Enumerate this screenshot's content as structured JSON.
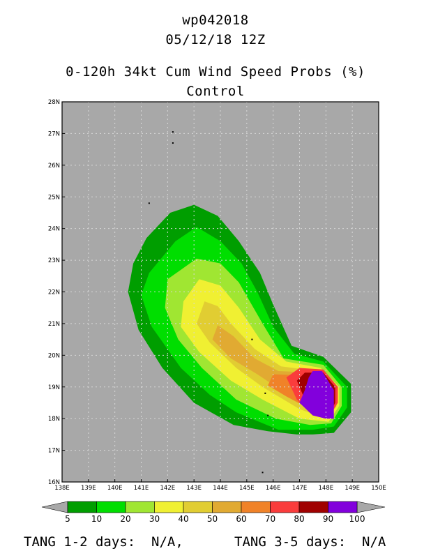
{
  "header": {
    "storm_id": "wp042018",
    "datetime": "05/12/18 12Z",
    "product": "0-120h 34kt Cum Wind Speed Probs (%)",
    "model": "Control"
  },
  "map": {
    "lon_range": [
      138,
      150
    ],
    "lat_range": [
      16,
      28
    ],
    "lon_ticks": [
      "138E",
      "139E",
      "140E",
      "141E",
      "142E",
      "143E",
      "144E",
      "145E",
      "146E",
      "147E",
      "148E",
      "149E",
      "150E"
    ],
    "lat_ticks": [
      "16N",
      "17N",
      "18N",
      "19N",
      "20N",
      "21N",
      "22N",
      "23N",
      "24N",
      "25N",
      "26N",
      "27N",
      "28N"
    ],
    "background_color": "#a8a8a8",
    "gridlines": true,
    "islands": [
      {
        "lon": 142.2,
        "lat": 27.05
      },
      {
        "lon": 142.2,
        "lat": 26.7
      },
      {
        "lon": 141.3,
        "lat": 24.8
      },
      {
        "lon": 145.2,
        "lat": 20.5
      },
      {
        "lon": 145.7,
        "lat": 18.8
      },
      {
        "lon": 145.8,
        "lat": 18.1
      },
      {
        "lon": 145.6,
        "lat": 16.3
      }
    ],
    "probability_contours": [
      {
        "level": 5,
        "color": "#009e00",
        "polygon": [
          [
            143.0,
            24.75
          ],
          [
            142.1,
            24.5
          ],
          [
            141.2,
            23.7
          ],
          [
            140.7,
            22.9
          ],
          [
            140.5,
            22.0
          ],
          [
            140.9,
            20.8
          ],
          [
            141.8,
            19.6
          ],
          [
            143.0,
            18.5
          ],
          [
            144.5,
            17.8
          ],
          [
            145.8,
            17.6
          ],
          [
            146.9,
            17.5
          ],
          [
            147.5,
            17.5
          ],
          [
            148.3,
            17.55
          ],
          [
            148.95,
            18.2
          ],
          [
            148.95,
            19.1
          ],
          [
            147.9,
            19.95
          ],
          [
            146.7,
            20.3
          ],
          [
            146.0,
            21.6
          ],
          [
            145.5,
            22.6
          ],
          [
            144.7,
            23.6
          ],
          [
            143.9,
            24.4
          ]
        ]
      },
      {
        "level": 10,
        "color": "#00de00",
        "polygon": [
          [
            143.1,
            24.05
          ],
          [
            142.3,
            23.6
          ],
          [
            141.3,
            22.6
          ],
          [
            141.0,
            21.9
          ],
          [
            141.4,
            20.9
          ],
          [
            142.5,
            19.6
          ],
          [
            143.6,
            18.75
          ],
          [
            144.6,
            18.2
          ],
          [
            146.2,
            17.65
          ],
          [
            147.5,
            17.65
          ],
          [
            148.3,
            17.75
          ],
          [
            148.8,
            18.35
          ],
          [
            148.8,
            19.0
          ],
          [
            147.9,
            19.8
          ],
          [
            146.8,
            20.05
          ],
          [
            146.0,
            20.9
          ],
          [
            145.4,
            22.0
          ],
          [
            144.8,
            22.9
          ],
          [
            144.0,
            23.6
          ]
        ]
      },
      {
        "level": 20,
        "color": "#a0e632",
        "polygon": [
          [
            143.1,
            23.05
          ],
          [
            142.0,
            22.4
          ],
          [
            141.9,
            21.5
          ],
          [
            142.4,
            20.5
          ],
          [
            143.3,
            19.6
          ],
          [
            144.6,
            18.6
          ],
          [
            146.1,
            18.0
          ],
          [
            147.4,
            17.8
          ],
          [
            148.2,
            17.85
          ],
          [
            148.6,
            18.4
          ],
          [
            148.6,
            19.0
          ],
          [
            147.9,
            19.7
          ],
          [
            146.4,
            19.9
          ],
          [
            145.6,
            21.0
          ],
          [
            144.7,
            22.3
          ],
          [
            144.0,
            22.9
          ]
        ]
      },
      {
        "level": 30,
        "color": "#f0f032",
        "polygon": [
          [
            143.2,
            22.4
          ],
          [
            142.6,
            21.7
          ],
          [
            142.5,
            20.9
          ],
          [
            143.2,
            20.1
          ],
          [
            144.4,
            19.2
          ],
          [
            145.6,
            18.6
          ],
          [
            147.0,
            18.0
          ],
          [
            148.1,
            17.9
          ],
          [
            148.5,
            18.4
          ],
          [
            148.5,
            19.0
          ],
          [
            147.8,
            19.6
          ],
          [
            146.5,
            19.8
          ],
          [
            145.5,
            20.5
          ],
          [
            144.7,
            21.5
          ],
          [
            144.0,
            22.2
          ]
        ]
      },
      {
        "level": 40,
        "color": "#e1cd32",
        "polygon": [
          [
            143.4,
            21.7
          ],
          [
            143.1,
            21.0
          ],
          [
            143.6,
            20.4
          ],
          [
            144.6,
            19.6
          ],
          [
            145.6,
            19.0
          ],
          [
            147.0,
            18.3
          ],
          [
            148.0,
            18.0
          ],
          [
            148.4,
            18.4
          ],
          [
            148.4,
            19.0
          ],
          [
            147.7,
            19.5
          ],
          [
            146.3,
            19.65
          ],
          [
            145.3,
            20.2
          ],
          [
            144.4,
            21.0
          ],
          [
            143.9,
            21.55
          ]
        ]
      },
      {
        "level": 50,
        "color": "#e1aa32",
        "polygon": [
          [
            143.9,
            20.95
          ],
          [
            143.7,
            20.5
          ],
          [
            144.4,
            19.9
          ],
          [
            145.4,
            19.4
          ],
          [
            146.3,
            18.9
          ],
          [
            147.4,
            18.3
          ],
          [
            148.1,
            18.05
          ],
          [
            148.4,
            18.4
          ],
          [
            148.4,
            19.0
          ],
          [
            147.6,
            19.45
          ],
          [
            146.2,
            19.5
          ],
          [
            145.3,
            19.9
          ],
          [
            144.5,
            20.6
          ]
        ]
      },
      {
        "level": 60,
        "color": "#f08228",
        "polygon": [
          [
            146.0,
            19.4
          ],
          [
            145.8,
            19.05
          ],
          [
            146.5,
            18.7
          ],
          [
            147.4,
            18.3
          ],
          [
            148.1,
            18.1
          ],
          [
            148.35,
            18.4
          ],
          [
            148.35,
            19.0
          ],
          [
            147.5,
            19.35
          ]
        ]
      },
      {
        "level": 70,
        "color": "#fa3c3c",
        "polygon": [
          [
            147.0,
            19.6
          ],
          [
            146.5,
            19.3
          ],
          [
            146.9,
            18.6
          ],
          [
            147.4,
            18.2
          ],
          [
            148.1,
            18.05
          ],
          [
            148.45,
            18.5
          ],
          [
            148.45,
            19.0
          ],
          [
            147.9,
            19.55
          ]
        ]
      },
      {
        "level": 80,
        "color": "#a00000",
        "polygon": [
          [
            147.2,
            19.45
          ],
          [
            146.9,
            19.2
          ],
          [
            147.2,
            18.6
          ],
          [
            147.5,
            18.25
          ],
          [
            148.1,
            18.1
          ],
          [
            148.35,
            18.5
          ],
          [
            148.35,
            19.0
          ],
          [
            147.9,
            19.45
          ]
        ]
      },
      {
        "level": 90,
        "color": "#a00000",
        "polygon": [
          [
            147.3,
            19.35
          ],
          [
            147.1,
            19.2
          ],
          [
            147.3,
            18.6
          ],
          [
            147.6,
            18.3
          ],
          [
            148.1,
            18.15
          ],
          [
            148.3,
            18.5
          ],
          [
            148.3,
            18.95
          ],
          [
            147.9,
            19.35
          ]
        ]
      },
      {
        "level": 100,
        "color": "#8200dc",
        "polygon": [
          [
            147.5,
            19.5
          ],
          [
            147.35,
            19.3
          ],
          [
            147.2,
            18.9
          ],
          [
            147.0,
            18.5
          ],
          [
            147.5,
            18.1
          ],
          [
            148.0,
            18.0
          ],
          [
            148.3,
            18.0
          ],
          [
            148.3,
            18.9
          ],
          [
            147.85,
            19.5
          ]
        ]
      }
    ]
  },
  "colorbar": {
    "labels": [
      "5",
      "10",
      "20",
      "30",
      "40",
      "50",
      "60",
      "70",
      "80",
      "90",
      "100"
    ],
    "colors": [
      "#009e00",
      "#00de00",
      "#a0e632",
      "#f0f032",
      "#e1cd32",
      "#e1aa32",
      "#f08228",
      "#fa3c3c",
      "#a00000",
      "#8200dc"
    ],
    "end_color": "#a8a8a8"
  },
  "footer": {
    "tang_12": "TANG 1-2 days:  N/A,",
    "tang_35": "TANG 3-5 days:  N/A"
  }
}
